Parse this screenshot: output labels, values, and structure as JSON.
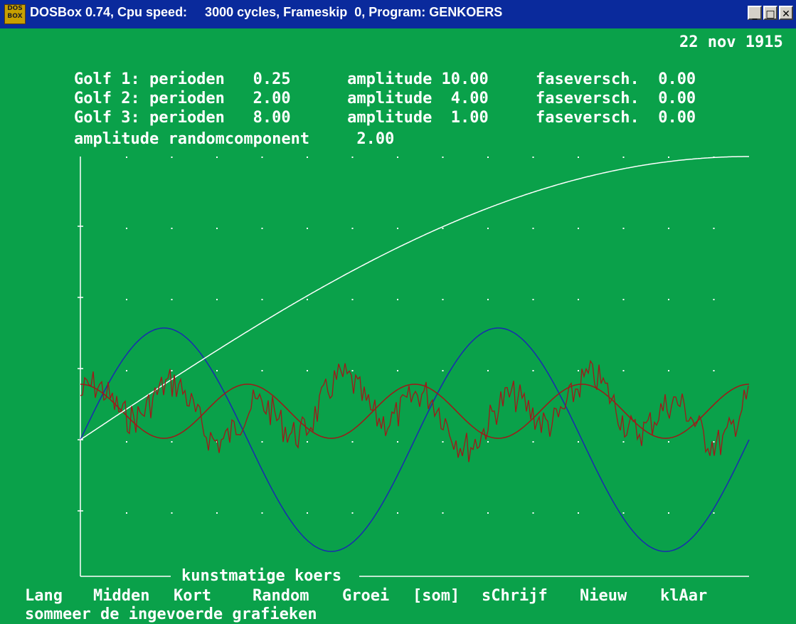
{
  "titlebar": {
    "text": "DOSBox 0.74, Cpu speed:     3000 cycles, Frameskip  0, Program: GENKOERS",
    "icon_text": "DOS BOX",
    "icon": "dosbox-icon",
    "minimize": "_",
    "maximize": "□",
    "close": "✕"
  },
  "screen": {
    "date": "22 nov 1915",
    "params": [
      "Golf 1: perioden   0.25      amplitude 10.00     faseversch.  0.00",
      "Golf 2: perioden   2.00      amplitude  4.00     faseversch.  0.00",
      "Golf 3: perioden   8.00      amplitude  1.00     faseversch.  0.00"
    ],
    "random_line": "amplitude randomcomponent     2.00",
    "graph_label": "kunstmatige koers",
    "menu": [
      "Lang",
      "Midden",
      "Kort",
      "Random",
      "Groei",
      "[som]",
      "sChrijf",
      "Nieuw",
      "klAar"
    ],
    "status": "sommeer de ingevoerde grafieken"
  },
  "colors": {
    "background": "#0aa14a",
    "titlebar": "#0a2a9c",
    "axis": "#ffffff",
    "wave_long": "#1a2ab0",
    "wave_short": "#a01818",
    "sum": "#a01818",
    "growth": "#ffffff"
  }
}
